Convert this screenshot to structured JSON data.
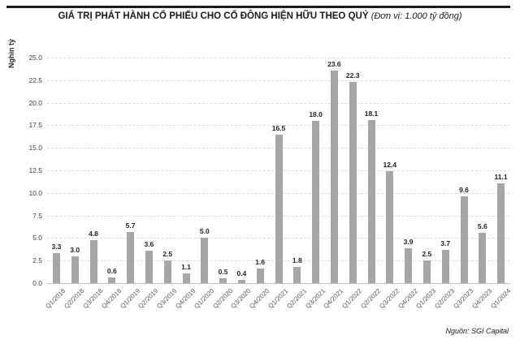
{
  "chart_data": {
    "type": "bar",
    "title": "GIÁ TRỊ PHÁT HÀNH CỔ PHIẾU CHO CỔ ĐÔNG HIỆN HỮU THEO QUÝ",
    "unit_note": "(Đơn vị: 1.000 tỷ đồng)",
    "ylabel": "Nghìn tỷ",
    "categories": [
      "Q1/2018",
      "Q2/2018",
      "Q3/2018",
      "Q4/2018",
      "Q1/2019",
      "Q2/2019",
      "Q3/2019",
      "Q4/2019",
      "Q1/2020",
      "Q2/2020",
      "Q3/2020",
      "Q4/2020",
      "Q1/2021",
      "Q2/2021",
      "Q3/2021",
      "Q4/2021",
      "Q1/2022",
      "Q2/2022",
      "Q3/2022",
      "Q4/2022",
      "Q1/2023",
      "Q2/2023",
      "Q3/2023",
      "Q4/2023",
      "Q1/2024"
    ],
    "values": [
      3.3,
      3.0,
      4.8,
      0.6,
      5.7,
      3.6,
      2.5,
      1.1,
      5.0,
      0.5,
      0.4,
      1.6,
      16.5,
      1.8,
      18.0,
      23.6,
      22.3,
      18.1,
      12.4,
      3.9,
      2.5,
      3.7,
      9.6,
      5.6,
      11.1
    ],
    "ylim": [
      0,
      25
    ],
    "ytick_step": 2.5,
    "grid": "horizontal-dashed",
    "legend": "none",
    "bar_color": "#a6a6a6",
    "source": "Nguồn: SGI Capital"
  }
}
